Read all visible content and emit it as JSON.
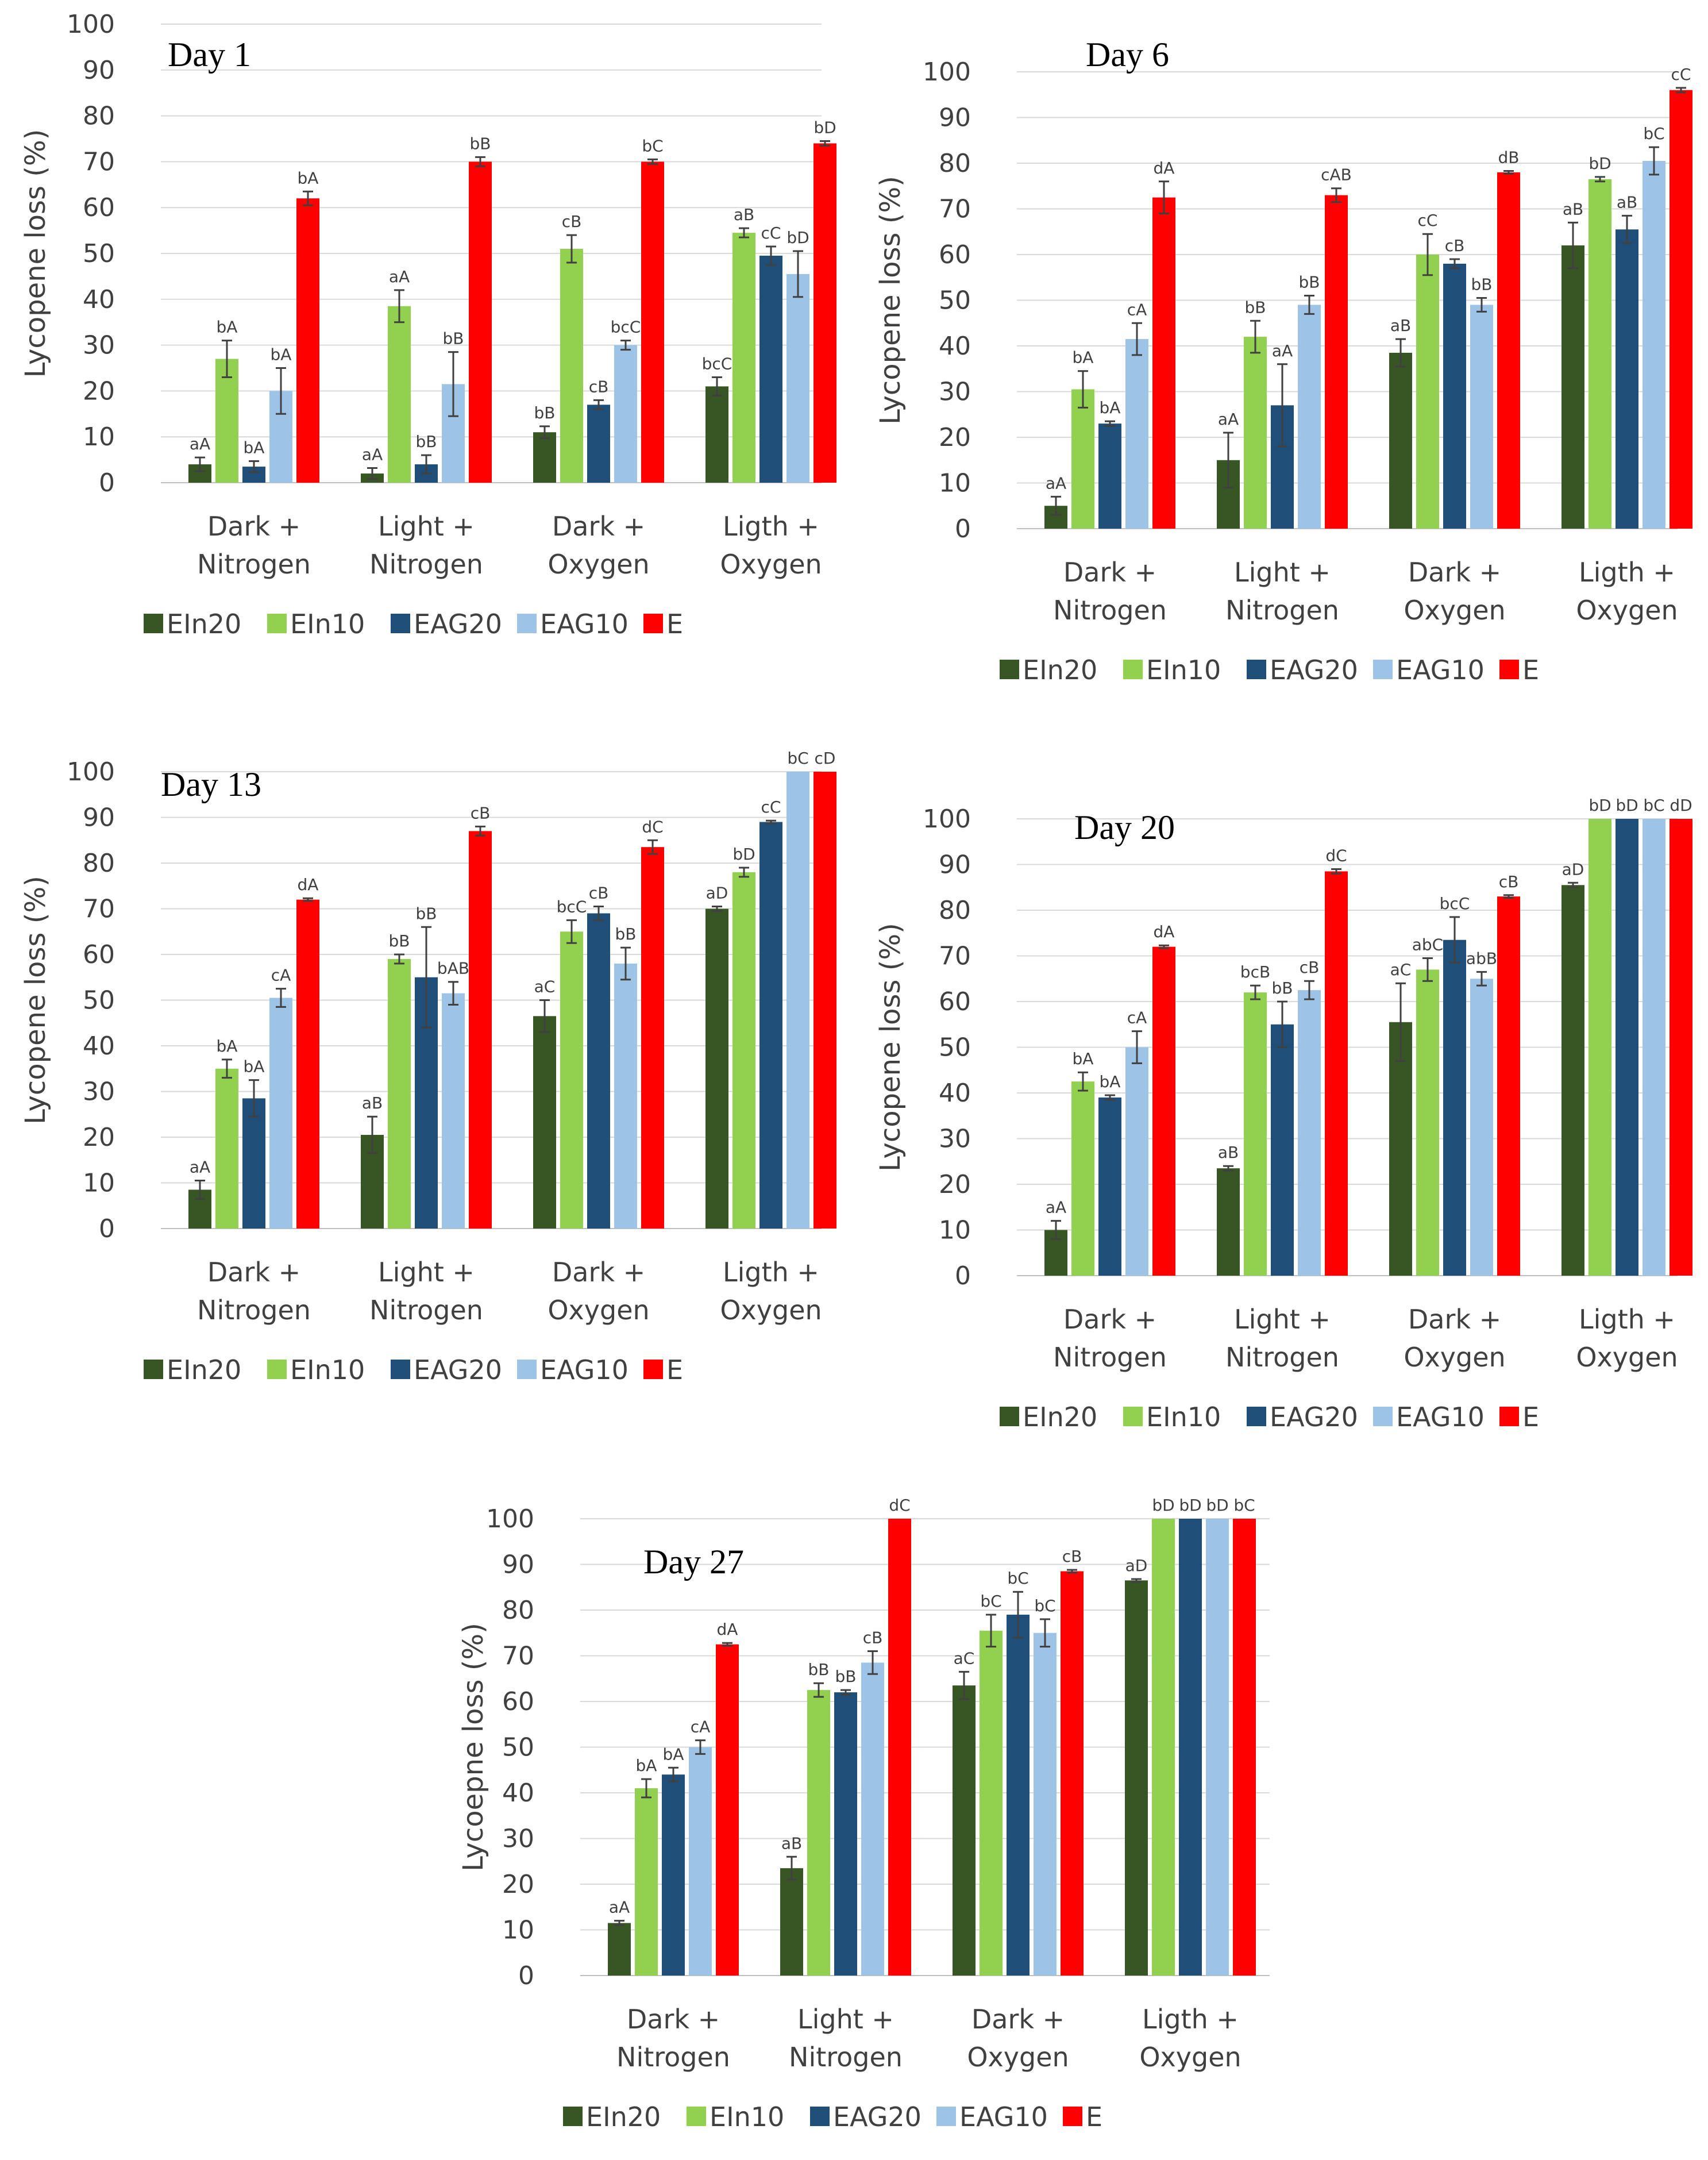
{
  "chart_data": [
    {
      "type": "bar",
      "title": "Day 1",
      "ylabel": "Lycopene loss (%)",
      "ylim": [
        0,
        100
      ],
      "yticks": [
        "0",
        "10",
        "20",
        "30",
        "40",
        "50",
        "60",
        "70",
        "80",
        "90",
        "100"
      ],
      "grid": true,
      "legend_position": "bottom",
      "categories": [
        [
          "Dark +",
          "Nitrogen"
        ],
        [
          "Light +",
          "Nitrogen"
        ],
        [
          "Dark +",
          "Oxygen"
        ],
        [
          "Ligth +",
          "Oxygen"
        ]
      ],
      "series": [
        {
          "name": "EIn20",
          "color": "#375623",
          "values": [
            4,
            2,
            11,
            21
          ],
          "errors": [
            1.5,
            1.2,
            1.3,
            2
          ],
          "labels": [
            "aA",
            "aA",
            "bB",
            "bcC"
          ]
        },
        {
          "name": "EIn10",
          "color": "#92D050",
          "values": [
            27,
            38.5,
            51,
            54.5
          ],
          "errors": [
            4,
            3.5,
            3,
            1
          ],
          "labels": [
            "bA",
            "aA",
            "cB",
            "aB"
          ]
        },
        {
          "name": "EAG20",
          "color": "#1F4E79",
          "values": [
            3.5,
            4,
            17,
            49.5
          ],
          "errors": [
            1.2,
            2,
            1,
            2
          ],
          "labels": [
            "bA",
            "bB",
            "cB",
            "cC"
          ]
        },
        {
          "name": "EAG10",
          "color": "#9DC3E6",
          "values": [
            20,
            21.5,
            30,
            45.5
          ],
          "errors": [
            5,
            7,
            1,
            5
          ],
          "labels": [
            "bA",
            "bB",
            "bcC",
            "bD"
          ]
        },
        {
          "name": "E",
          "color": "#FF0000",
          "values": [
            62,
            70,
            70,
            74
          ],
          "errors": [
            1.5,
            1,
            0.5,
            0.5
          ],
          "labels": [
            "bA",
            "bB",
            "bC",
            "bD"
          ]
        }
      ]
    },
    {
      "type": "bar",
      "title": "Day 6",
      "ylabel": "Lycopene loss (%)",
      "ylim": [
        0,
        100
      ],
      "yticks": [
        "0",
        "10",
        "20",
        "30",
        "40",
        "50",
        "60",
        "70",
        "80",
        "90",
        "100"
      ],
      "grid": true,
      "legend_position": "bottom",
      "categories": [
        [
          "Dark +",
          "Nitrogen"
        ],
        [
          "Light +",
          "Nitrogen"
        ],
        [
          "Dark +",
          "Oxygen"
        ],
        [
          "Ligth +",
          "Oxygen"
        ]
      ],
      "series": [
        {
          "name": "EIn20",
          "color": "#375623",
          "values": [
            5,
            15,
            38.5,
            62
          ],
          "errors": [
            2,
            6,
            3,
            5
          ],
          "labels": [
            "aA",
            "aA",
            "aB",
            "aB"
          ]
        },
        {
          "name": "EIn10",
          "color": "#92D050",
          "values": [
            30.5,
            42,
            60,
            76.5
          ],
          "errors": [
            4,
            3.5,
            4.5,
            0.5
          ],
          "labels": [
            "bA",
            "bB",
            "cC",
            "bD"
          ]
        },
        {
          "name": "EAG20",
          "color": "#1F4E79",
          "values": [
            23,
            27,
            58,
            65.5
          ],
          "errors": [
            0.5,
            9,
            1,
            3
          ],
          "labels": [
            "bA",
            "aA",
            "cB",
            "aB"
          ]
        },
        {
          "name": "EAG10",
          "color": "#9DC3E6",
          "values": [
            41.5,
            49,
            49,
            80.5
          ],
          "errors": [
            3.5,
            2,
            1.5,
            3
          ],
          "labels": [
            "cA",
            "bB",
            "bB",
            "bC"
          ]
        },
        {
          "name": "E",
          "color": "#FF0000",
          "values": [
            72.5,
            73,
            78,
            96
          ],
          "errors": [
            3.5,
            1.5,
            0.3,
            0.5
          ],
          "labels": [
            "dA",
            "cAB",
            "dB",
            "cC"
          ]
        }
      ]
    },
    {
      "type": "bar",
      "title": "Day 13",
      "ylabel": "Lycopene loss (%)",
      "ylim": [
        0,
        100
      ],
      "yticks": [
        "0",
        "10",
        "20",
        "30",
        "40",
        "50",
        "60",
        "70",
        "80",
        "90",
        "100"
      ],
      "grid": true,
      "legend_position": "bottom",
      "categories": [
        [
          "Dark +",
          "Nitrogen"
        ],
        [
          "Light +",
          "Nitrogen"
        ],
        [
          "Dark +",
          "Oxygen"
        ],
        [
          "Ligth +",
          "Oxygen"
        ]
      ],
      "series": [
        {
          "name": "EIn20",
          "color": "#375623",
          "values": [
            8.5,
            20.5,
            46.5,
            70
          ],
          "errors": [
            2,
            4,
            3.5,
            0.5
          ],
          "labels": [
            "aA",
            "aB",
            "aC",
            "aD"
          ]
        },
        {
          "name": "EIn10",
          "color": "#92D050",
          "values": [
            35,
            59,
            65,
            78
          ],
          "errors": [
            2,
            1,
            2.5,
            1
          ],
          "labels": [
            "bA",
            "bB",
            "bcC",
            "bD"
          ]
        },
        {
          "name": "EAG20",
          "color": "#1F4E79",
          "values": [
            28.5,
            55,
            69,
            89
          ],
          "errors": [
            4,
            11,
            1.5,
            0.3
          ],
          "labels": [
            "bA",
            "bB",
            "cB",
            "cC"
          ]
        },
        {
          "name": "EAG10",
          "color": "#9DC3E6",
          "values": [
            50.5,
            51.5,
            58,
            100
          ],
          "errors": [
            2,
            2.5,
            3.5,
            0
          ],
          "labels": [
            "cA",
            "bAB",
            "bB",
            "bC"
          ]
        },
        {
          "name": "E",
          "color": "#FF0000",
          "values": [
            72,
            87,
            83.5,
            100
          ],
          "errors": [
            0.3,
            1,
            1.5,
            0
          ],
          "labels": [
            "dA",
            "cB",
            "dC",
            "cD"
          ]
        }
      ]
    },
    {
      "type": "bar",
      "title": "Day 20",
      "ylabel": "Lycopene loss (%)",
      "ylim": [
        0,
        100
      ],
      "yticks": [
        "0",
        "10",
        "20",
        "30",
        "40",
        "50",
        "60",
        "70",
        "80",
        "90",
        "100"
      ],
      "grid": true,
      "legend_position": "bottom",
      "categories": [
        [
          "Dark +",
          "Nitrogen"
        ],
        [
          "Light +",
          "Nitrogen"
        ],
        [
          "Dark +",
          "Oxygen"
        ],
        [
          "Ligth +",
          "Oxygen"
        ]
      ],
      "series": [
        {
          "name": "EIn20",
          "color": "#375623",
          "values": [
            10,
            23.5,
            55.5,
            85.5
          ],
          "errors": [
            2,
            0.5,
            8.5,
            0.5
          ],
          "labels": [
            "aA",
            "aB",
            "aC",
            "aD"
          ]
        },
        {
          "name": "EIn10",
          "color": "#92D050",
          "values": [
            42.5,
            62,
            67,
            100
          ],
          "errors": [
            2,
            1.5,
            2.5,
            0
          ],
          "labels": [
            "bA",
            "bcB",
            "abC",
            "bD"
          ]
        },
        {
          "name": "EAG20",
          "color": "#1F4E79",
          "values": [
            39,
            55,
            73.5,
            100
          ],
          "errors": [
            0.5,
            5,
            5,
            0
          ],
          "labels": [
            "bA",
            "bB",
            "bcC",
            "bD"
          ]
        },
        {
          "name": "EAG10",
          "color": "#9DC3E6",
          "values": [
            50,
            62.5,
            65,
            100
          ],
          "errors": [
            3.5,
            2,
            1.5,
            0
          ],
          "labels": [
            "cA",
            "cB",
            "abB",
            "bC"
          ]
        },
        {
          "name": "E",
          "color": "#FF0000",
          "values": [
            72,
            88.5,
            83,
            100
          ],
          "errors": [
            0.3,
            0.5,
            0.3,
            0
          ],
          "labels": [
            "dA",
            "dC",
            "cB",
            "dD"
          ]
        }
      ]
    },
    {
      "type": "bar",
      "title": "Day 27",
      "ylabel": "Lycoepne loss (%)",
      "ylim": [
        0,
        100
      ],
      "yticks": [
        "0",
        "10",
        "20",
        "30",
        "40",
        "50",
        "60",
        "70",
        "80",
        "90",
        "100"
      ],
      "grid": true,
      "legend_position": "bottom",
      "categories": [
        [
          "Dark +",
          "Nitrogen"
        ],
        [
          "Light +",
          "Nitrogen"
        ],
        [
          "Dark +",
          "Oxygen"
        ],
        [
          "Ligth +",
          "Oxygen"
        ]
      ],
      "series": [
        {
          "name": "EIn20",
          "color": "#375623",
          "values": [
            11.5,
            23.5,
            63.5,
            86.5
          ],
          "errors": [
            0.5,
            2.5,
            3,
            0.3
          ],
          "labels": [
            "aA",
            "aB",
            "aC",
            "aD"
          ]
        },
        {
          "name": "EIn10",
          "color": "#92D050",
          "values": [
            41,
            62.5,
            75.5,
            100
          ],
          "errors": [
            2,
            1.5,
            3.5,
            0
          ],
          "labels": [
            "bA",
            "bB",
            "bC",
            "bD"
          ]
        },
        {
          "name": "EAG20",
          "color": "#1F4E79",
          "values": [
            44,
            62,
            79,
            100
          ],
          "errors": [
            1.5,
            0.5,
            5,
            0
          ],
          "labels": [
            "bA",
            "bB",
            "bC",
            "bD"
          ]
        },
        {
          "name": "EAG10",
          "color": "#9DC3E6",
          "values": [
            50,
            68.5,
            75,
            100
          ],
          "errors": [
            1.5,
            2.5,
            3,
            0
          ],
          "labels": [
            "cA",
            "cB",
            "bC",
            "bD"
          ]
        },
        {
          "name": "E",
          "color": "#FF0000",
          "values": [
            72.5,
            100,
            88.5,
            100
          ],
          "errors": [
            0.3,
            0,
            0.3,
            0
          ],
          "labels": [
            "dA",
            "dC",
            "cB",
            "bC"
          ]
        }
      ]
    }
  ]
}
